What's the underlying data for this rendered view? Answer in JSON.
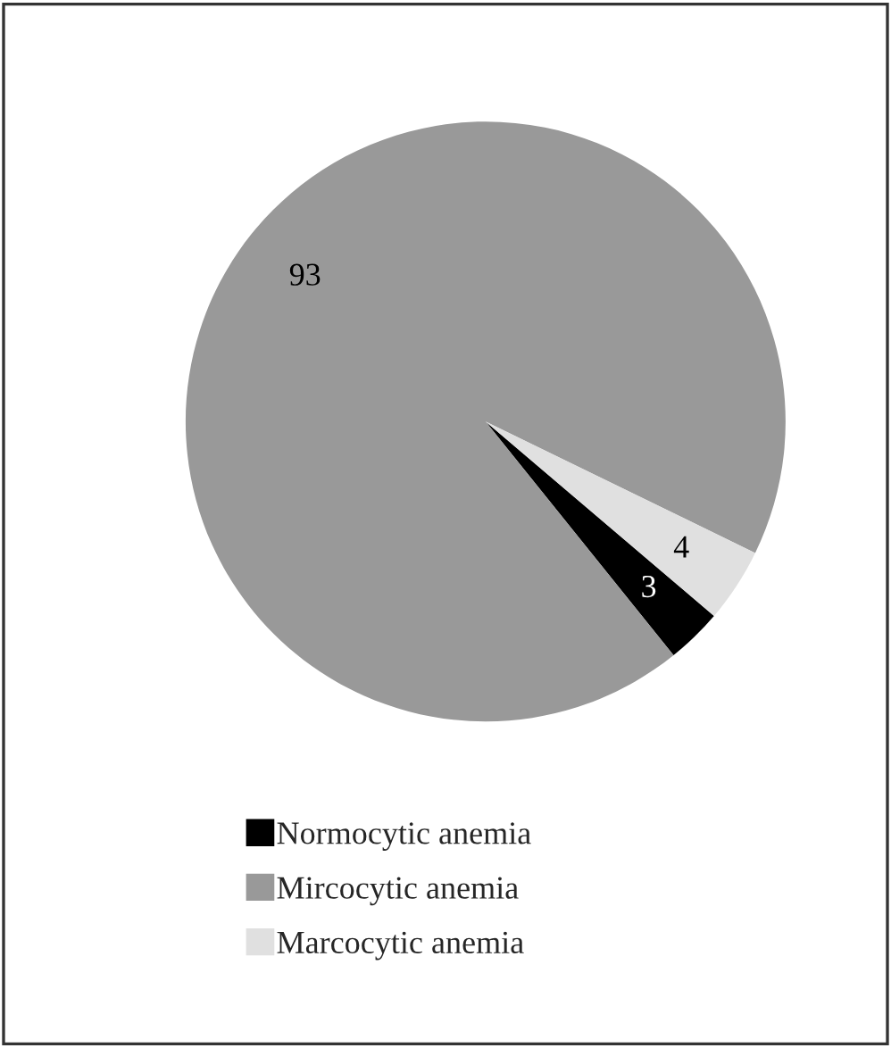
{
  "chart_data": {
    "type": "pie",
    "categories": [
      "Normocytic anemia",
      "Mircocytic anemia",
      "Marcocytic anemia"
    ],
    "values": [
      3,
      93,
      4
    ],
    "colors": [
      "#000000",
      "#999999",
      "#e0e0e0"
    ],
    "data_labels": true,
    "legend": "bottom"
  }
}
